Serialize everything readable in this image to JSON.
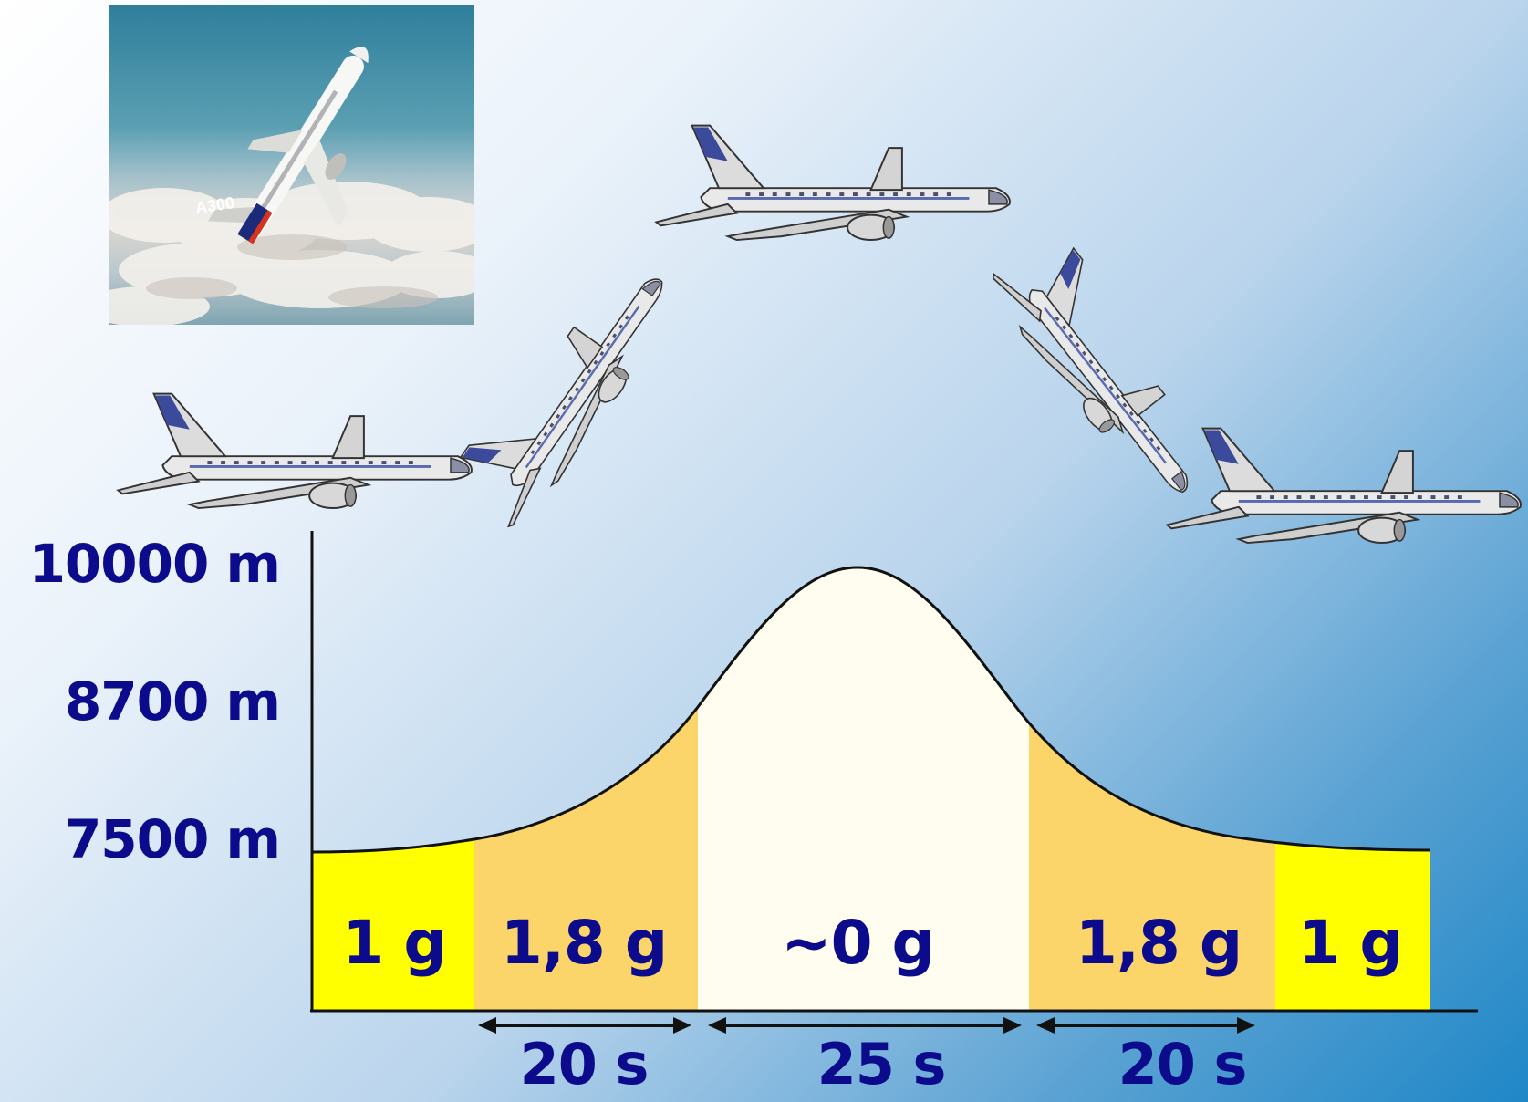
{
  "photo": {
    "aircraft_marking": "A300"
  },
  "altitudes": [
    {
      "label": "10000 m"
    },
    {
      "label": "8700 m"
    },
    {
      "label": "7500 m"
    }
  ],
  "phases": [
    {
      "g": "1 g",
      "color": "#ffff00"
    },
    {
      "g": "1,8 g",
      "color": "#fbd56a"
    },
    {
      "g": "~0 g",
      "color": "#fffdf0"
    },
    {
      "g": "1,8 g",
      "color": "#fbd56a"
    },
    {
      "g": "1 g",
      "color": "#ffff00"
    }
  ],
  "durations": [
    {
      "label": "20 s"
    },
    {
      "label": "25 s"
    },
    {
      "label": "20 s"
    }
  ],
  "aircraft_icons": [
    "airplane-level-icon",
    "airplane-climb-icon",
    "airplane-top-icon",
    "airplane-descend-icon",
    "airplane-level-icon"
  ],
  "colors": {
    "text": "#0b0b8c",
    "axis": "#111111",
    "curve": "#111111"
  }
}
